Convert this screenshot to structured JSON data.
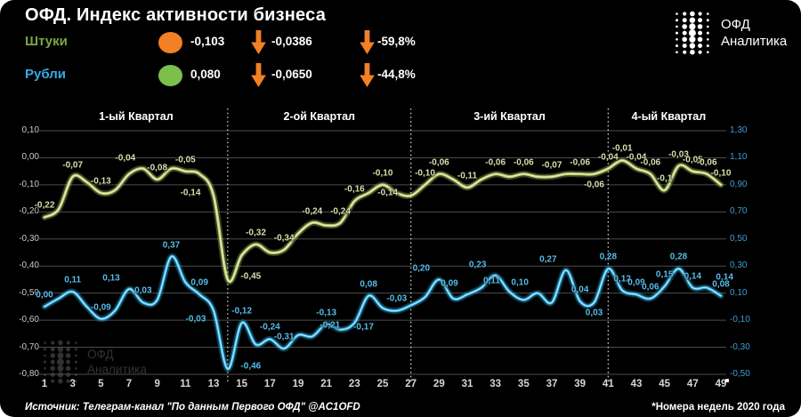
{
  "card": {
    "title": "ОФД. Индекс активности бизнеса",
    "logo": {
      "line1": "ОФД",
      "line2": "Аналитика"
    },
    "watermark": {
      "line1": "ОФД",
      "line2": "Аналитика"
    }
  },
  "legend": {
    "rows": [
      {
        "label": "Штуки",
        "label_color": "#76A83F",
        "dot_color": "#F28024",
        "value": "-0,103",
        "delta": "-0,0386",
        "percent": "-59,8%"
      },
      {
        "label": "Рубли",
        "label_color": "#36A9E1",
        "dot_color": "#7CBF4B",
        "value": "0,080",
        "delta": "-0,0650",
        "percent": "-44,8%"
      }
    ]
  },
  "colors": {
    "background": "#000000",
    "orange": "#F28024",
    "green_dot": "#7CBF4B",
    "grid": "#4C4C4C",
    "left_tick": "#C9C9C3",
    "right_tick": "#3D9FCE",
    "x_tick": "#D6D6D6",
    "separator": "#FFFFFF"
  },
  "chart_data": {
    "type": "line",
    "weeks": 49,
    "x_ticks": [
      1,
      3,
      5,
      7,
      9,
      11,
      13,
      15,
      17,
      19,
      21,
      23,
      25,
      27,
      29,
      31,
      33,
      35,
      37,
      39,
      41,
      43,
      45,
      47,
      49
    ],
    "left_axis": {
      "max": 0.1,
      "min": -0.8,
      "step": 0.1,
      "ticks": [
        "0,10",
        "0,00",
        "-0,10",
        "-0,20",
        "-0,30",
        "-0,40",
        "-0,50",
        "-0,60",
        "-0,70",
        "-0,80"
      ]
    },
    "right_axis": {
      "max": 1.3,
      "min": -0.5,
      "step": 0.2,
      "ticks": [
        "1,30",
        "1,10",
        "0,90",
        "0,70",
        "0,50",
        "0,30",
        "0,10",
        "-0,10",
        "-0,30",
        "-0,50"
      ]
    },
    "quarters": [
      {
        "label": "1-ый Квартал",
        "mid_week": 7.5
      },
      {
        "label": "2-ой Квартал",
        "mid_week": 20.5
      },
      {
        "label": "3-ий Квартал",
        "mid_week": 34.0
      },
      {
        "label": "4-ый Квартал",
        "mid_week": 45.3
      }
    ],
    "separator_weeks": [
      14,
      27,
      41
    ],
    "series": [
      {
        "name": "Штуки",
        "axis": "left",
        "color": "#B7CD6E",
        "core_color": "#E9F1C6",
        "label_color": "#D8DFAC",
        "values": [
          -0.22,
          -0.19,
          -0.07,
          -0.09,
          -0.13,
          -0.12,
          -0.06,
          -0.04,
          -0.08,
          -0.04,
          -0.05,
          -0.06,
          -0.14,
          -0.45,
          -0.36,
          -0.32,
          -0.35,
          -0.34,
          -0.28,
          -0.24,
          -0.25,
          -0.24,
          -0.16,
          -0.13,
          -0.1,
          -0.13,
          -0.14,
          -0.1,
          -0.06,
          -0.08,
          -0.11,
          -0.08,
          -0.06,
          -0.07,
          -0.06,
          -0.07,
          -0.07,
          -0.06,
          -0.06,
          -0.06,
          -0.04,
          -0.01,
          -0.04,
          -0.06,
          -0.12,
          -0.03,
          -0.05,
          -0.06,
          -0.1
        ],
        "point_labels": [
          {
            "w": 1,
            "t": "-0,22",
            "pos": "a"
          },
          {
            "w": 3,
            "t": "-0,07",
            "pos": "a"
          },
          {
            "w": 5,
            "t": "-0,13",
            "pos": "a"
          },
          {
            "w": 8,
            "t": "-0,04",
            "pos": "al"
          },
          {
            "w": 9,
            "t": "-0,08",
            "pos": "a"
          },
          {
            "w": 11,
            "t": "-0,05",
            "pos": "a"
          },
          {
            "w": 13,
            "t": "-0,14",
            "pos": "l"
          },
          {
            "w": 14,
            "t": "-0,45",
            "pos": "r"
          },
          {
            "w": 16,
            "t": "-0,32",
            "pos": "a"
          },
          {
            "w": 18,
            "t": "-0,34",
            "pos": "a"
          },
          {
            "w": 20,
            "t": "-0,24",
            "pos": "a"
          },
          {
            "w": 22,
            "t": "-0,24",
            "pos": "a"
          },
          {
            "w": 23,
            "t": "-0,16",
            "pos": "a"
          },
          {
            "w": 25,
            "t": "-0,10",
            "pos": "a"
          },
          {
            "w": 27,
            "t": "-0,14",
            "pos": "l"
          },
          {
            "w": 28,
            "t": "-0,10",
            "pos": "a"
          },
          {
            "w": 29,
            "t": "-0,06",
            "pos": "a"
          },
          {
            "w": 31,
            "t": "-0,11",
            "pos": "a"
          },
          {
            "w": 33,
            "t": "-0,06",
            "pos": "a"
          },
          {
            "w": 35,
            "t": "-0,06",
            "pos": "a"
          },
          {
            "w": 37,
            "t": "-0,07",
            "pos": "a"
          },
          {
            "w": 39,
            "t": "-0,06",
            "pos": "a"
          },
          {
            "w": 40,
            "t": "-0,06",
            "pos": "b"
          },
          {
            "w": 41,
            "t": "-0,04",
            "pos": "a"
          },
          {
            "w": 42,
            "t": "-0,01",
            "pos": "a"
          },
          {
            "w": 43,
            "t": "-0,04",
            "pos": "a"
          },
          {
            "w": 44,
            "t": "-0,06",
            "pos": "a"
          },
          {
            "w": 45,
            "t": "-0,1",
            "pos": "a"
          },
          {
            "w": 46,
            "t": "-0,03",
            "pos": "a"
          },
          {
            "w": 47,
            "t": "-0,05",
            "pos": "a"
          },
          {
            "w": 48,
            "t": "-0,06",
            "pos": "a"
          },
          {
            "w": 49,
            "t": "-0,10",
            "pos": "a"
          }
        ]
      },
      {
        "name": "Рубли",
        "axis": "right",
        "color": "#2FB2E6",
        "core_color": "#C6ECFB",
        "label_color": "#55BDE9",
        "values": [
          0.0,
          0.06,
          0.11,
          0.0,
          -0.09,
          -0.03,
          0.13,
          0.03,
          0.05,
          0.37,
          0.18,
          0.09,
          -0.03,
          -0.46,
          -0.12,
          -0.28,
          -0.24,
          -0.31,
          -0.21,
          -0.22,
          -0.13,
          -0.17,
          -0.12,
          0.08,
          -0.01,
          -0.03,
          0.01,
          0.07,
          0.2,
          0.06,
          0.09,
          0.14,
          0.23,
          0.11,
          0.05,
          0.1,
          0.03,
          0.27,
          0.04,
          0.03,
          0.28,
          0.12,
          0.09,
          0.06,
          0.15,
          0.28,
          0.14,
          0.14,
          0.08
        ],
        "point_labels": [
          {
            "w": 1,
            "t": "0,00",
            "pos": "a"
          },
          {
            "w": 3,
            "t": "0,11",
            "pos": "a"
          },
          {
            "w": 5,
            "t": "-0,09",
            "pos": "a"
          },
          {
            "w": 7,
            "t": "0,13",
            "pos": "al"
          },
          {
            "w": 8,
            "t": "0,03",
            "pos": "a"
          },
          {
            "w": 10,
            "t": "0,37",
            "pos": "a"
          },
          {
            "w": 12,
            "t": "0,09",
            "pos": "a"
          },
          {
            "w": 13,
            "t": "-0,03",
            "pos": "bl"
          },
          {
            "w": 14,
            "t": "-0,46",
            "pos": "r"
          },
          {
            "w": 15,
            "t": "-0,12",
            "pos": "a"
          },
          {
            "w": 17,
            "t": "-0,24",
            "pos": "a"
          },
          {
            "w": 18,
            "t": "-0,31",
            "pos": "a"
          },
          {
            "w": 20,
            "t": "-0,21",
            "pos": "ar"
          },
          {
            "w": 21,
            "t": "-0,13",
            "pos": "a"
          },
          {
            "w": 22,
            "t": "-0,17",
            "pos": "r"
          },
          {
            "w": 24,
            "t": "0,08",
            "pos": "a"
          },
          {
            "w": 26,
            "t": "-0,03",
            "pos": "a"
          },
          {
            "w": 29,
            "t": "0,20",
            "pos": "al"
          },
          {
            "w": 31,
            "t": "0,09",
            "pos": "al"
          },
          {
            "w": 33,
            "t": "0,23",
            "pos": "al"
          },
          {
            "w": 34,
            "t": "0,11",
            "pos": "al"
          },
          {
            "w": 36,
            "t": "0,10",
            "pos": "al"
          },
          {
            "w": 38,
            "t": "0,27",
            "pos": "al"
          },
          {
            "w": 39,
            "t": "0,04",
            "pos": "a"
          },
          {
            "w": 40,
            "t": "0,03",
            "pos": "b"
          },
          {
            "w": 41,
            "t": "0,28",
            "pos": "a"
          },
          {
            "w": 42,
            "t": "0,12",
            "pos": "a"
          },
          {
            "w": 43,
            "t": "0,09",
            "pos": "a"
          },
          {
            "w": 44,
            "t": "0,06",
            "pos": "a"
          },
          {
            "w": 45,
            "t": "0,15",
            "pos": "a"
          },
          {
            "w": 46,
            "t": "0,28",
            "pos": "a"
          },
          {
            "w": 47,
            "t": "0,14",
            "pos": "a"
          },
          {
            "w": 48,
            "t": "0,14",
            "pos": "ar"
          },
          {
            "w": 49,
            "t": "0,08",
            "pos": "a"
          }
        ]
      }
    ]
  },
  "footer": {
    "source": "Источник: Телеграм-канал \"По данным Первого ОФД\" @AC1OFD",
    "note": "*Номера недель 2020 года"
  }
}
